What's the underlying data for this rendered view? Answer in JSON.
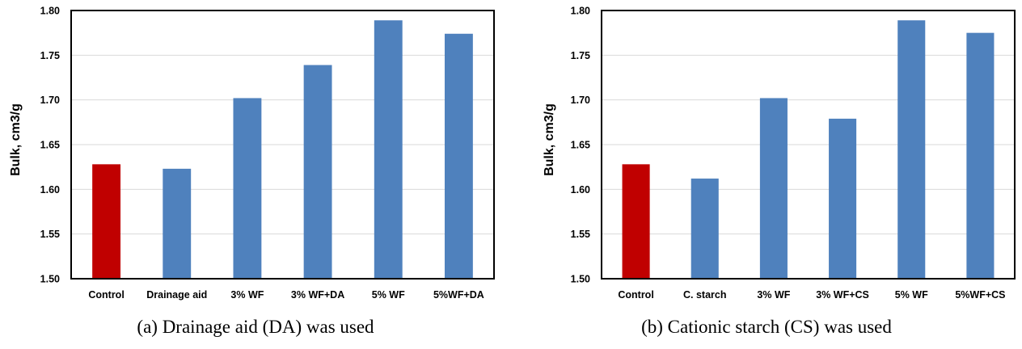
{
  "chart_data": [
    {
      "type": "bar",
      "title": "",
      "caption": "(a) Drainage aid (DA) was used",
      "xlabel": "",
      "ylabel": "Bulk, cm3/g",
      "ylim": [
        1.5,
        1.8
      ],
      "yticks": [
        "1.50",
        "1.55",
        "1.60",
        "1.65",
        "1.70",
        "1.75",
        "1.80"
      ],
      "grid": true,
      "categories": [
        "Control",
        "Drainage aid",
        "3% WF",
        "3% WF+DA",
        "5% WF",
        "5%WF+DA"
      ],
      "values": [
        1.628,
        1.623,
        1.702,
        1.739,
        1.789,
        1.774
      ],
      "colors": [
        "#c00000",
        "#4f81bd",
        "#4f81bd",
        "#4f81bd",
        "#4f81bd",
        "#4f81bd"
      ]
    },
    {
      "type": "bar",
      "title": "",
      "caption": "(b) Cationic starch (CS) was used",
      "xlabel": "",
      "ylabel": "Bulk, cm3/g",
      "ylim": [
        1.5,
        1.8
      ],
      "yticks": [
        "1.50",
        "1.55",
        "1.60",
        "1.65",
        "1.70",
        "1.75",
        "1.80"
      ],
      "grid": true,
      "categories": [
        "Control",
        "C. starch",
        "3% WF",
        "3% WF+CS",
        "5% WF",
        "5%WF+CS"
      ],
      "values": [
        1.628,
        1.612,
        1.702,
        1.679,
        1.789,
        1.775
      ],
      "colors": [
        "#c00000",
        "#4f81bd",
        "#4f81bd",
        "#4f81bd",
        "#4f81bd",
        "#4f81bd"
      ]
    }
  ]
}
